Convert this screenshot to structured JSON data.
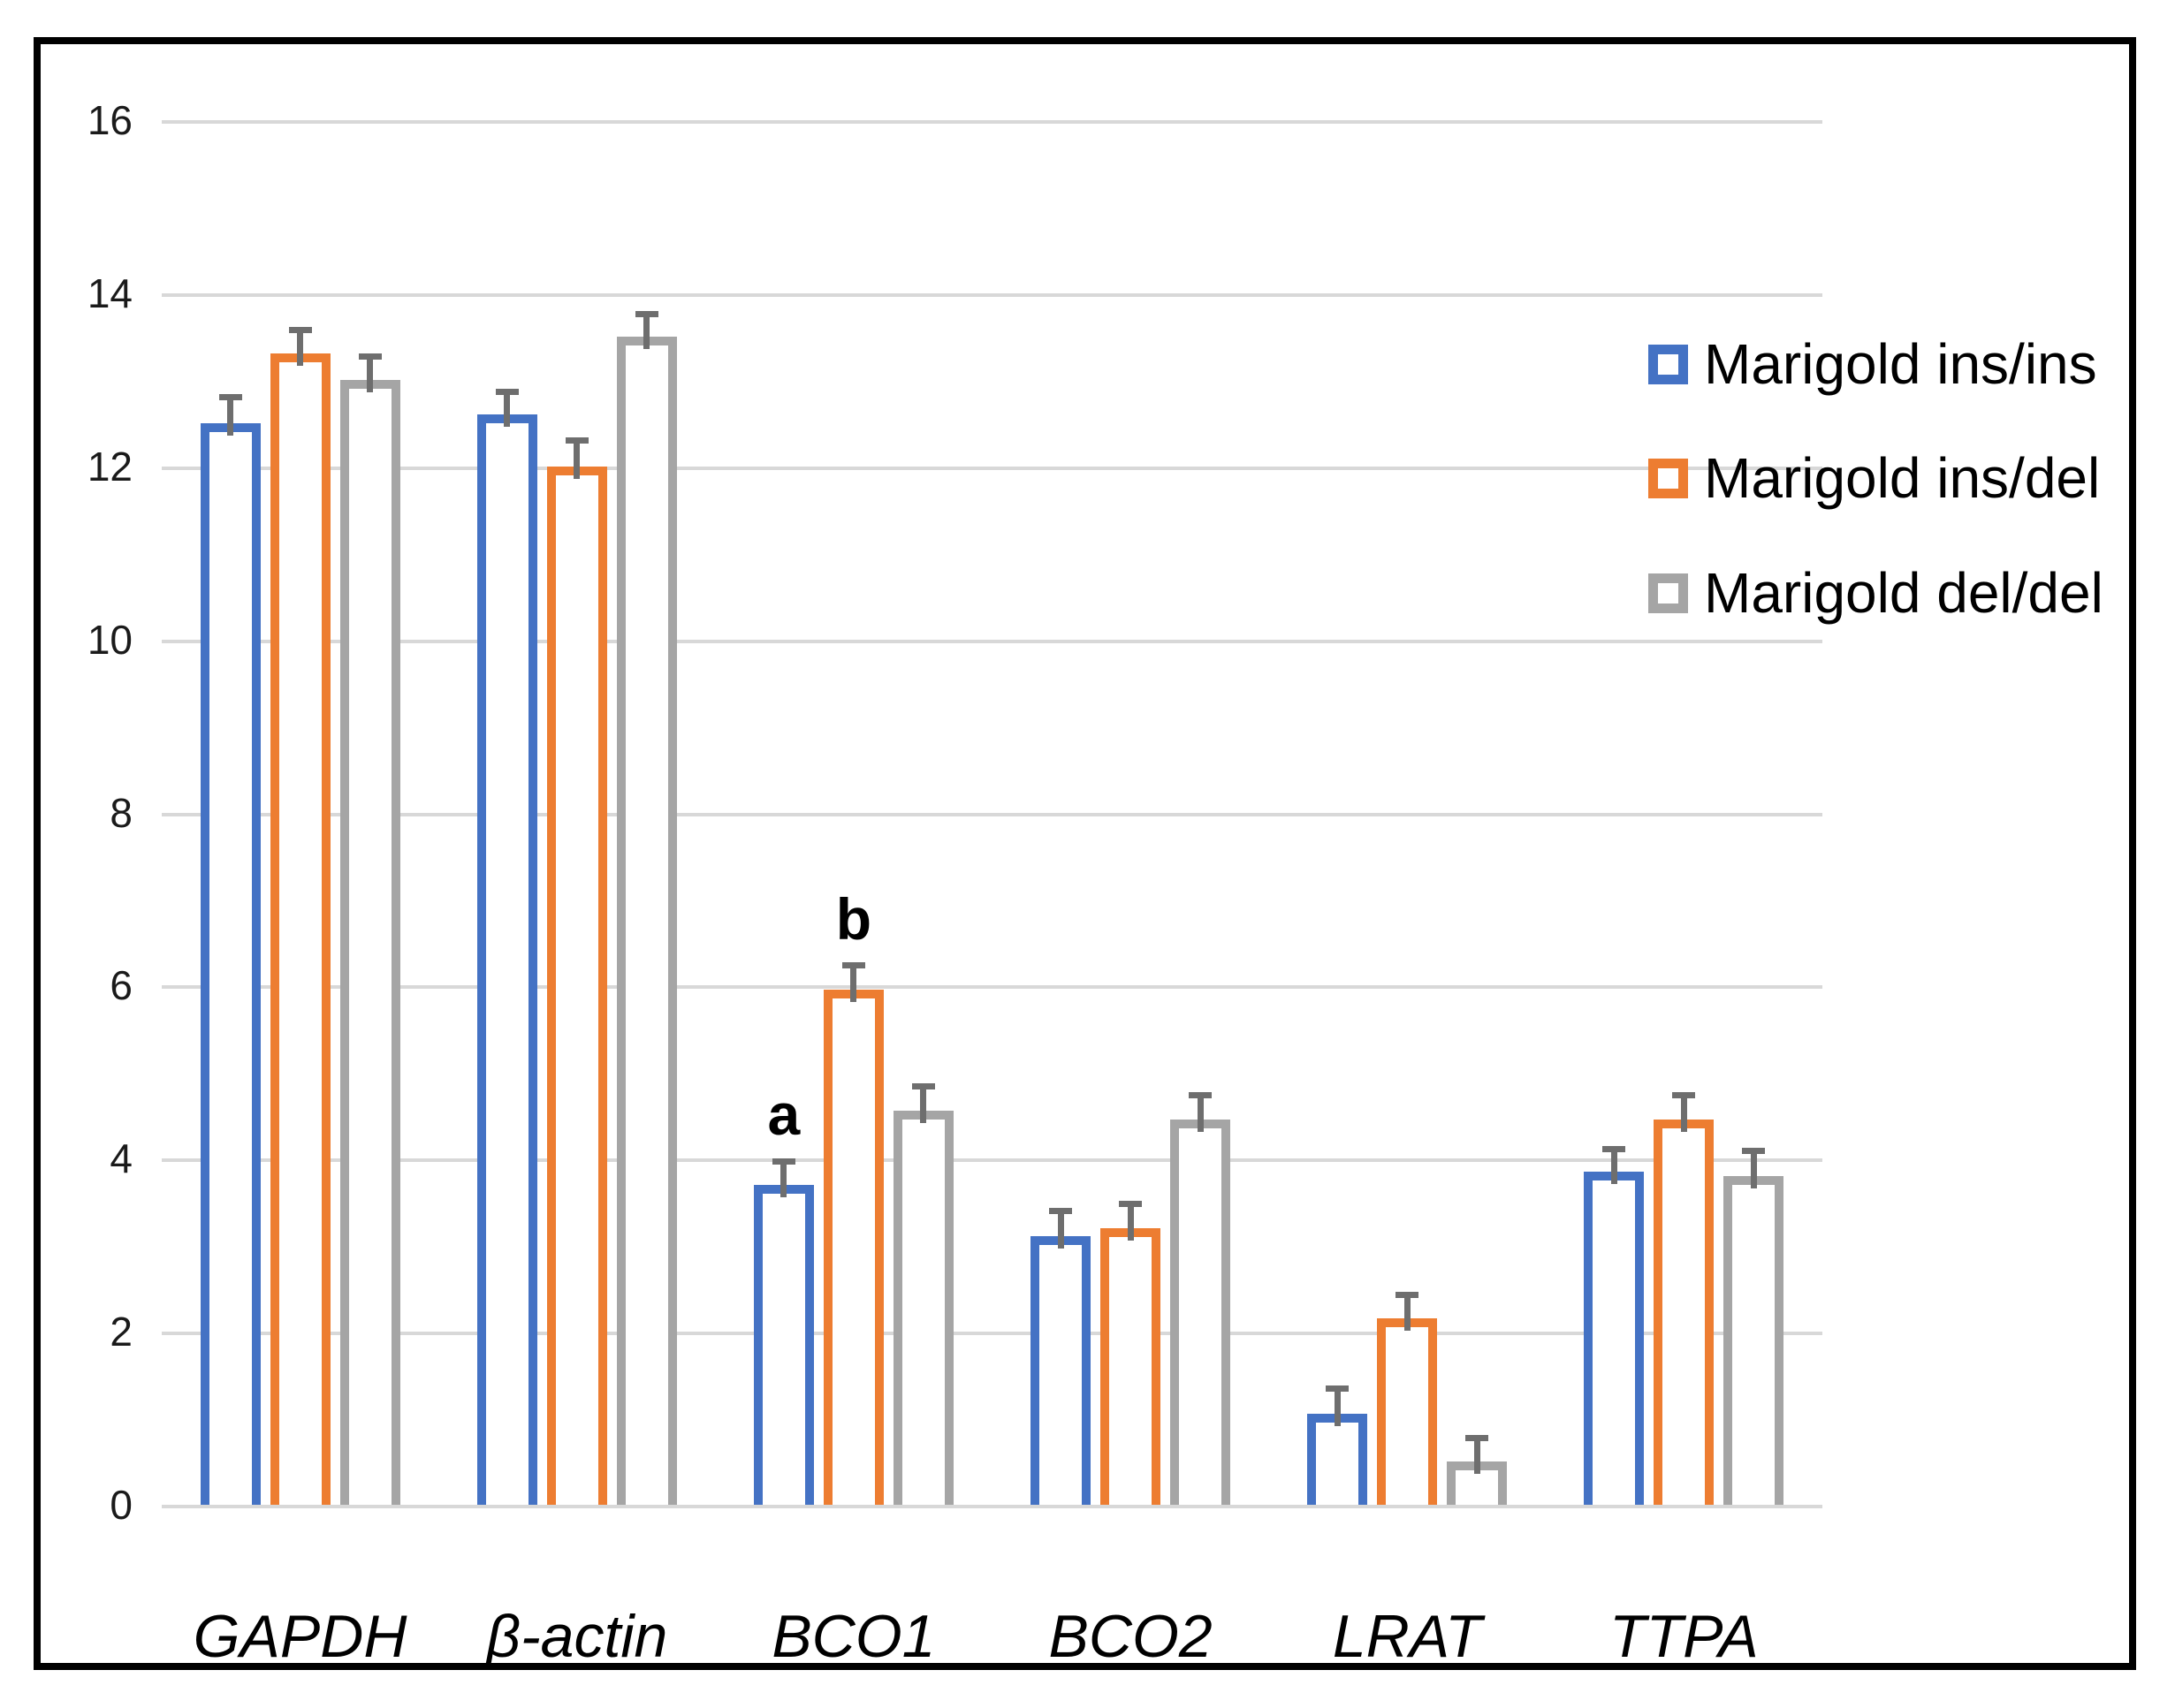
{
  "figure": {
    "background": "#FFFFFF",
    "frame_color": "#000000"
  },
  "chart_data": {
    "type": "bar",
    "title": "",
    "xlabel": "",
    "ylabel": "",
    "categories": [
      "GAPDH",
      "β-actin",
      "BCO1",
      "BCO2",
      "LRAT",
      "TTPA"
    ],
    "series": [
      {
        "name": "Marigold ins/ins",
        "color": "#4472C4",
        "values": [
          12.5,
          12.6,
          3.7,
          3.1,
          1.05,
          3.85
        ],
        "errors": [
          0.3,
          0.26,
          0.27,
          0.29,
          0.29,
          0.26
        ]
      },
      {
        "name": "Marigold ins/del",
        "color": "#ED7D31",
        "values": [
          13.3,
          12.0,
          5.95,
          3.2,
          2.15,
          4.45
        ],
        "errors": [
          0.28,
          0.3,
          0.28,
          0.28,
          0.27,
          0.28
        ]
      },
      {
        "name": "Marigold del/del",
        "color": "#A5A5A5",
        "values": [
          13.0,
          13.5,
          4.55,
          4.45,
          0.5,
          3.8
        ],
        "errors": [
          0.27,
          0.26,
          0.28,
          0.28,
          0.27,
          0.29
        ]
      }
    ],
    "ylim": [
      0,
      16
    ],
    "yticks": [
      0,
      2,
      4,
      6,
      8,
      10,
      12,
      14,
      16
    ],
    "ytick_labels": [
      "0",
      "2",
      "4",
      "6",
      "8",
      "10",
      "12",
      "14",
      "16"
    ],
    "grid": true,
    "gridline_color": "#D8D8D8",
    "bar_fill": "#FFFFFF",
    "error_bar_color": "#6E6E6E",
    "legend_position": "upper-right-inside",
    "annotations": [
      {
        "text": "a",
        "category": "BCO1",
        "series": "Marigold ins/ins"
      },
      {
        "text": "b",
        "category": "BCO1",
        "series": "Marigold ins/del"
      }
    ]
  }
}
